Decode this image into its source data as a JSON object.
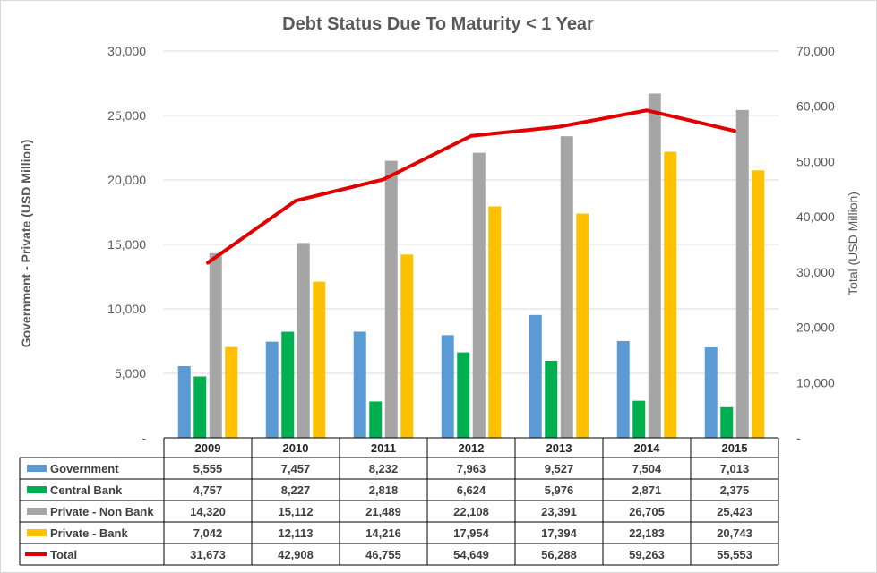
{
  "chart_data": {
    "type": "bar",
    "title": "Debt Status Due To Maturity < 1 Year",
    "ylabel": "Government - Private (USD Million)",
    "y2label": "Total (USD Million)",
    "categories": [
      "2009",
      "2010",
      "2011",
      "2012",
      "2013",
      "2014",
      "2015"
    ],
    "ylim": [
      0,
      30000
    ],
    "y2lim": [
      0,
      70000
    ],
    "yticks": [
      "-",
      "5,000",
      "10,000",
      "15,000",
      "20,000",
      "25,000",
      "30,000"
    ],
    "y2ticks": [
      "-",
      "10,000",
      "20,000",
      "30,000",
      "40,000",
      "50,000",
      "60,000",
      "70,000"
    ],
    "grid": true,
    "legend": "data-table-below",
    "series": [
      {
        "name": "Government",
        "type": "bar",
        "color": "#5B9BD5",
        "values": [
          5555,
          7457,
          8232,
          7963,
          9527,
          7504,
          7013
        ],
        "labels": [
          "5,555",
          "7,457",
          "8,232",
          "7,963",
          "9,527",
          "7,504",
          "7,013"
        ]
      },
      {
        "name": "Central Bank",
        "type": "bar",
        "color": "#00B050",
        "values": [
          4757,
          8227,
          2818,
          6624,
          5976,
          2871,
          2375
        ],
        "labels": [
          "4,757",
          "8,227",
          "2,818",
          "6,624",
          "5,976",
          "2,871",
          "2,375"
        ]
      },
      {
        "name": "Private - Non Bank",
        "type": "bar",
        "color": "#A5A5A5",
        "values": [
          14320,
          15112,
          21489,
          22108,
          23391,
          26705,
          25423
        ],
        "labels": [
          "14,320",
          "15,112",
          "21,489",
          "22,108",
          "23,391",
          "26,705",
          "25,423"
        ]
      },
      {
        "name": "Private - Bank",
        "type": "bar",
        "color": "#FFC000",
        "values": [
          7042,
          12113,
          14216,
          17954,
          17394,
          22183,
          20743
        ],
        "labels": [
          "7,042",
          "12,113",
          "14,216",
          "17,954",
          "17,394",
          "22,183",
          "20,743"
        ]
      },
      {
        "name": "Total",
        "type": "line",
        "axis": "right",
        "color": "#E00000",
        "values": [
          31673,
          42908,
          46755,
          54649,
          56288,
          59263,
          55553
        ],
        "labels": [
          "31,673",
          "42,908",
          "46,755",
          "54,649",
          "56,288",
          "59,263",
          "55,553"
        ]
      }
    ]
  }
}
